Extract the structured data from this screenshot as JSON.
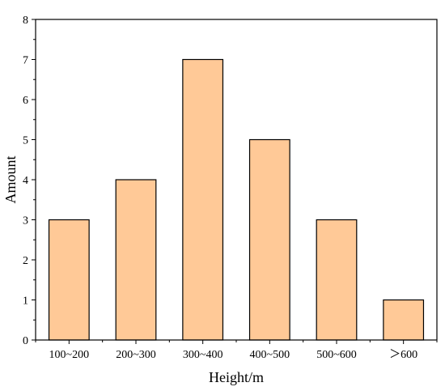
{
  "chart_data": {
    "type": "bar",
    "categories": [
      "100~200",
      "200~300",
      "300~400",
      "400~500",
      "500~600",
      "＞600"
    ],
    "values": [
      3,
      4,
      7,
      5,
      3,
      1
    ],
    "xlabel": "Height/m",
    "ylabel": "Amount",
    "ylim": [
      0,
      8
    ],
    "yticks": [
      0,
      1,
      2,
      3,
      4,
      5,
      6,
      7,
      8
    ],
    "grid": false,
    "bar_color": "#FFC997",
    "bar_edge_color": "#000000"
  }
}
